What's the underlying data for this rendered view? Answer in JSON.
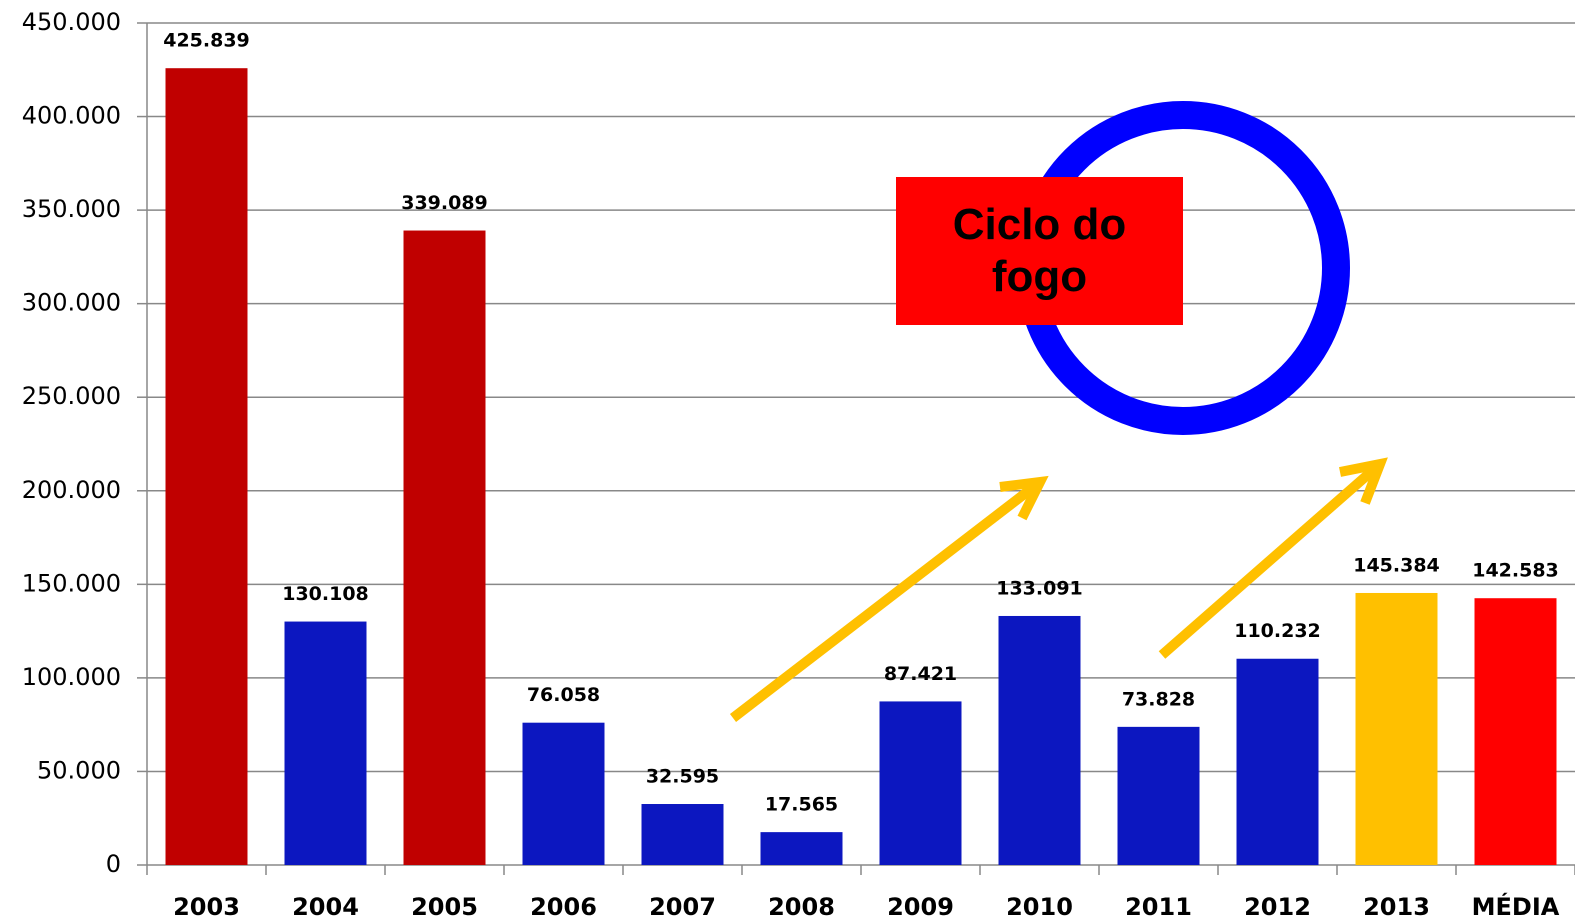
{
  "chart_data": {
    "type": "bar",
    "categories": [
      "2003",
      "2004",
      "2005",
      "2006",
      "2007",
      "2008",
      "2009",
      "2010",
      "2011",
      "2012",
      "2013",
      "MÉDIA"
    ],
    "values": [
      425839,
      130108,
      339089,
      76058,
      32595,
      17565,
      87421,
      133091,
      73828,
      110232,
      145384,
      142583
    ],
    "value_labels": [
      "425.839",
      "130.108",
      "339.089",
      "76.058",
      "32.595",
      "17.565",
      "87.421",
      "133.091",
      "73.828",
      "110.232",
      "145.384",
      "142.583"
    ],
    "colors": [
      "#c00000",
      "#0c17c0",
      "#c00000",
      "#0c17c0",
      "#0c17c0",
      "#0c17c0",
      "#0c17c0",
      "#0c17c0",
      "#0c17c0",
      "#0c17c0",
      "#ffc000",
      "#ff0000"
    ],
    "ylim": [
      0,
      450000
    ],
    "yticks": [
      0,
      {
        "value": 50000,
        "label": "50.000"
      },
      {
        "value": 100000,
        "label": "100.000"
      },
      {
        "value": 150000,
        "label": "150.000"
      },
      {
        "value": 200000,
        "label": "200.000"
      },
      {
        "value": 250000,
        "label": "250.000"
      },
      {
        "value": 300000,
        "label": "300.000"
      },
      {
        "value": 350000,
        "label": "350.000"
      },
      {
        "value": 400000,
        "label": "400.000"
      },
      {
        "value": 450000,
        "label": "450.000"
      }
    ],
    "grid": true,
    "annotation": "Ciclo do fogo"
  }
}
